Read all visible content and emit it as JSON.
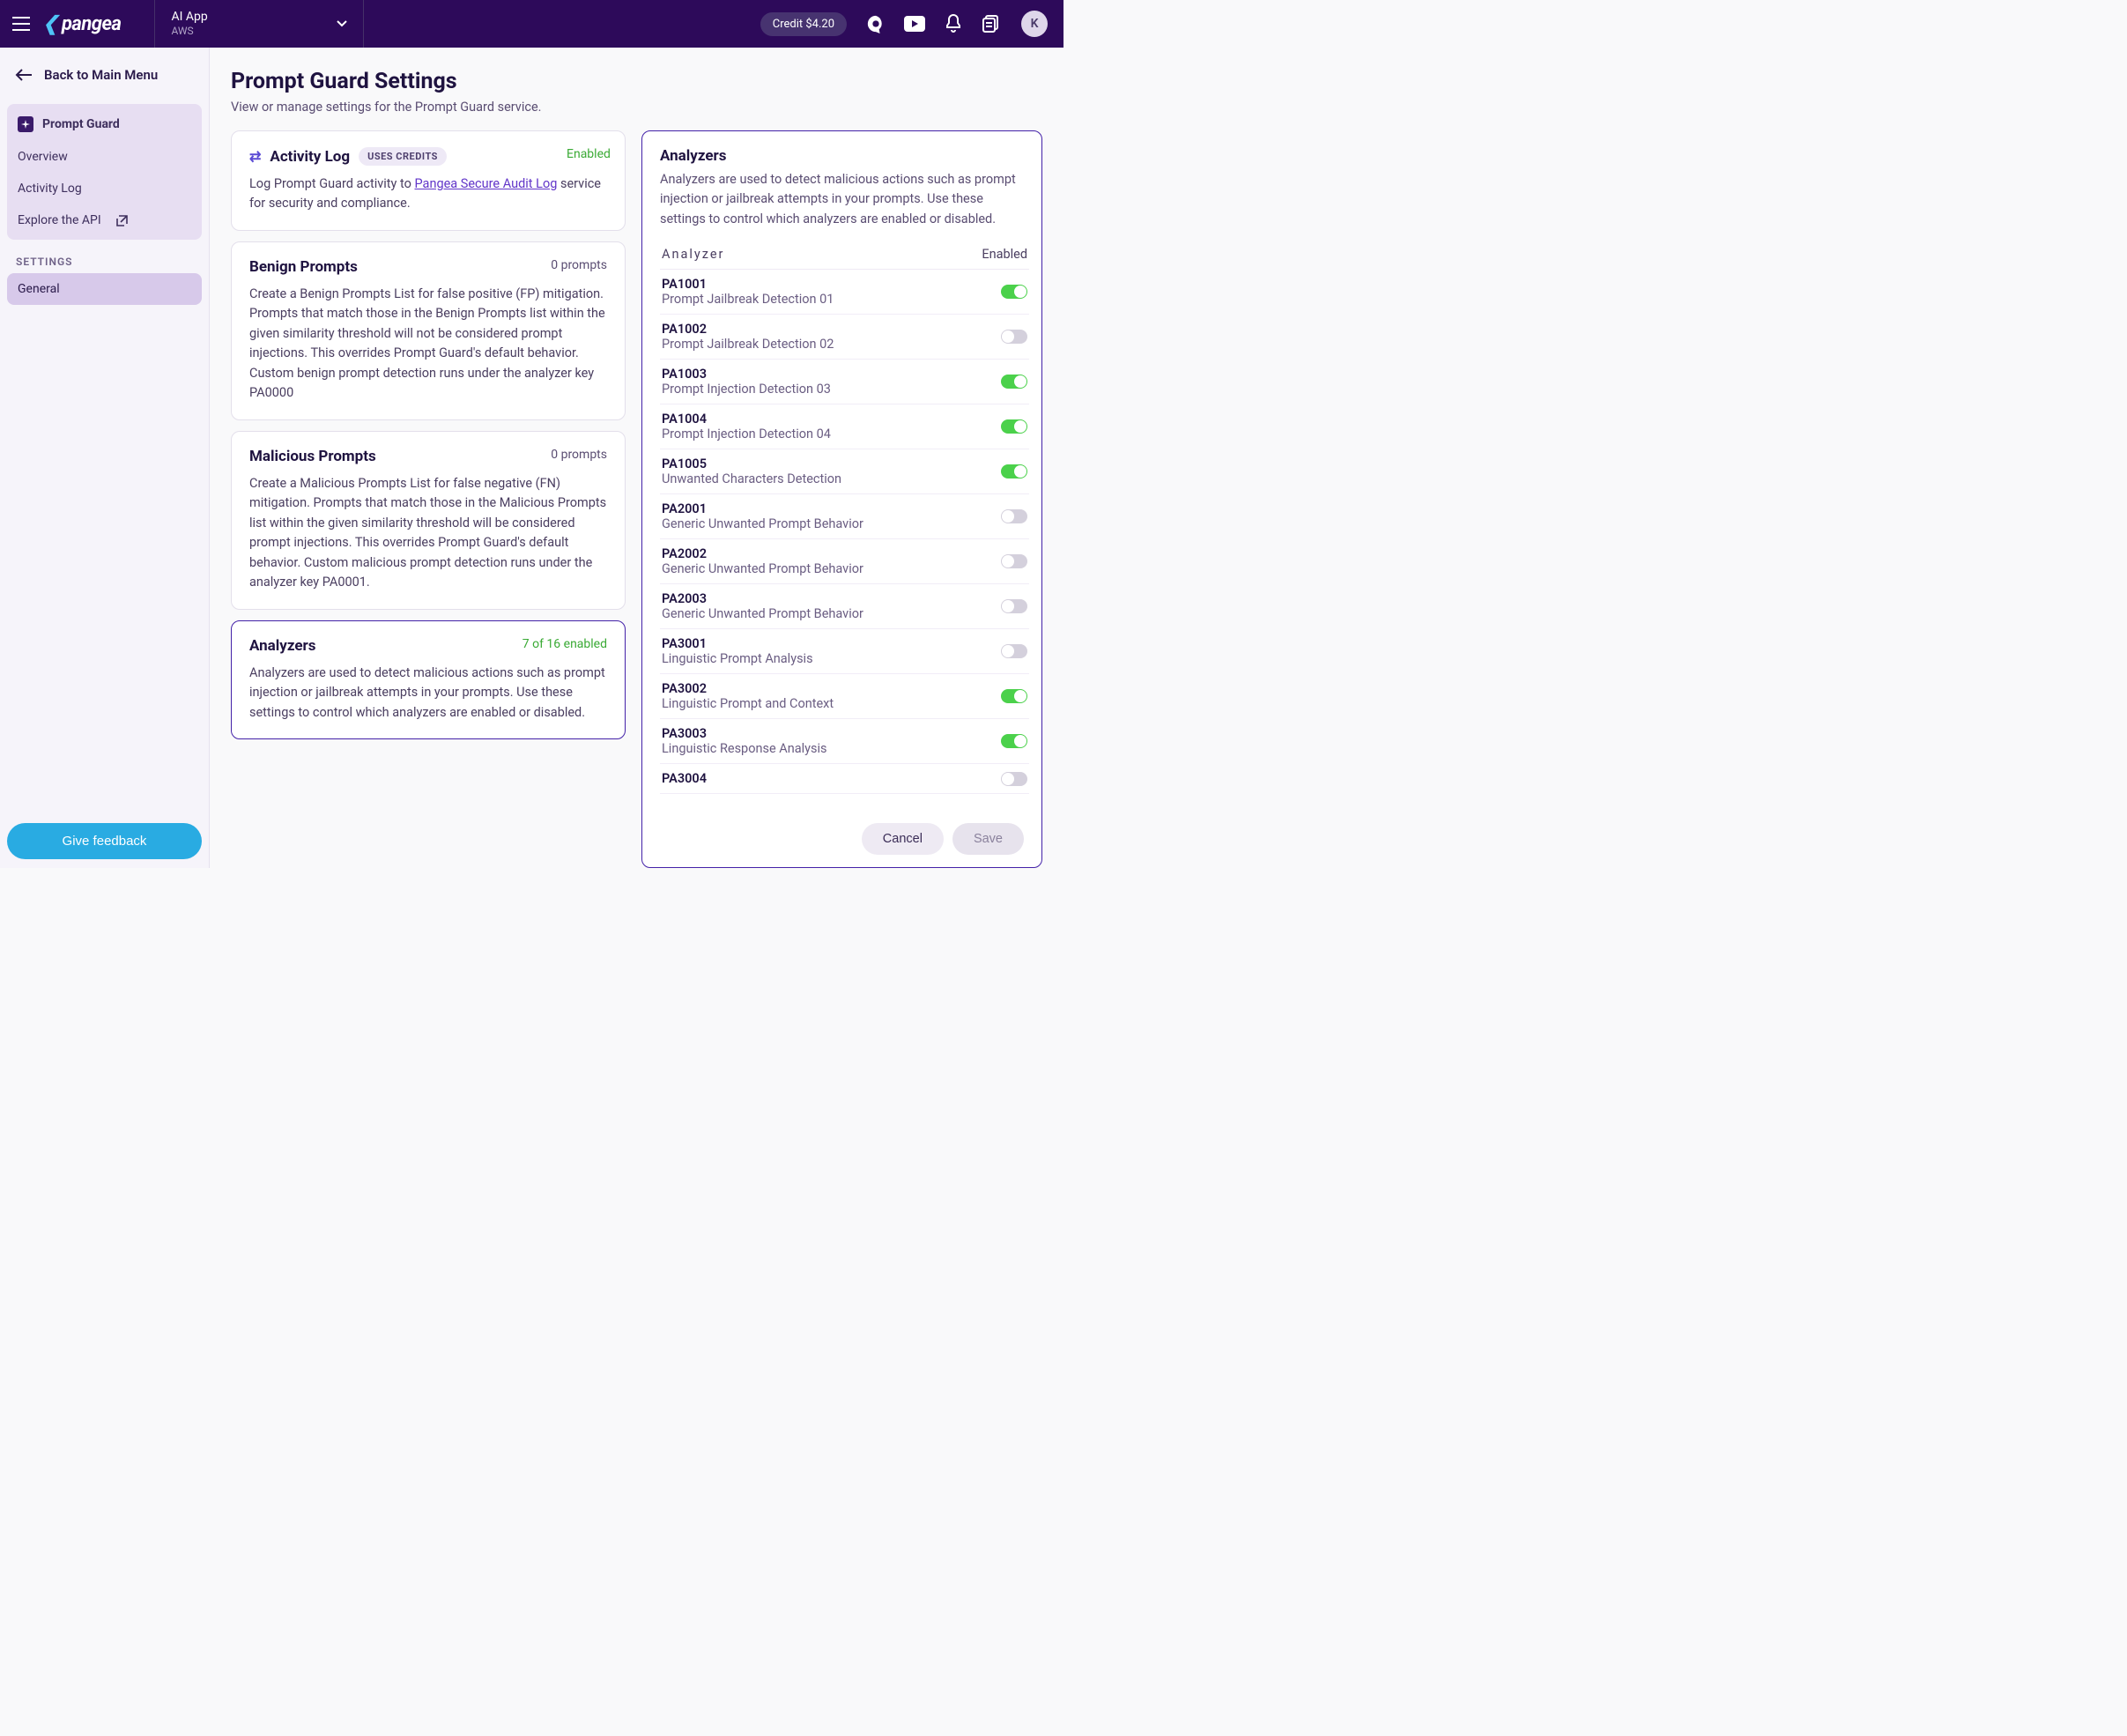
{
  "header": {
    "logo_text": "pangea",
    "app_name": "AI App",
    "app_region": "AWS",
    "credit_label": "Credit $4.20",
    "avatar_letter": "K"
  },
  "sidebar": {
    "back_label": "Back to Main Menu",
    "items": [
      {
        "label": "Prompt Guard",
        "bold": true,
        "icon": "sparkle"
      },
      {
        "label": "Overview"
      },
      {
        "label": "Activity Log"
      },
      {
        "label": "Explore the API",
        "ext": true
      }
    ],
    "settings_label": "SETTINGS",
    "settings_items": [
      {
        "label": "General",
        "active": true
      }
    ],
    "feedback_label": "Give feedback"
  },
  "page": {
    "title": "Prompt Guard Settings",
    "description": "View or manage settings for the Prompt Guard service."
  },
  "cards": {
    "activity": {
      "title": "Activity Log",
      "badge": "USES CREDITS",
      "status": "Enabled",
      "body_prefix": "Log Prompt Guard activity to ",
      "body_link": "Pangea Secure Audit Log",
      "body_suffix": " service for security and compliance."
    },
    "benign": {
      "title": "Benign Prompts",
      "count": "0 prompts",
      "body": "Create a Benign Prompts List for false positive (FP) mitigation. Prompts that match those in the Benign Prompts list within the given similarity threshold will not be considered prompt injections. This overrides Prompt Guard's default behavior. Custom benign prompt detection runs under the analyzer key PA0000"
    },
    "malicious": {
      "title": "Malicious Prompts",
      "count": "0 prompts",
      "body": "Create a Malicious Prompts List for false negative (FN) mitigation. Prompts that match those in the Malicious Prompts list within the given similarity threshold will be considered prompt injections. This overrides Prompt Guard's default behavior. Custom malicious prompt detection runs under the analyzer key PA0001."
    },
    "analyzers": {
      "title": "Analyzers",
      "count": "7 of 16 enabled",
      "body": "Analyzers are used to detect malicious actions such as prompt injection or jailbreak attempts in your prompts. Use these settings to control which analyzers are enabled or disabled."
    }
  },
  "panel": {
    "title": "Analyzers",
    "description": "Analyzers are used to detect malicious actions such as prompt injection or jailbreak attempts in your prompts. Use these settings to control which analyzers are enabled or disabled.",
    "col_analyzer": "Analyzer",
    "col_enabled": "Enabled",
    "rows": [
      {
        "id": "PA1001",
        "name": "Prompt Jailbreak Detection 01",
        "enabled": true
      },
      {
        "id": "PA1002",
        "name": "Prompt Jailbreak Detection 02",
        "enabled": false
      },
      {
        "id": "PA1003",
        "name": "Prompt Injection Detection 03",
        "enabled": true
      },
      {
        "id": "PA1004",
        "name": "Prompt Injection Detection 04",
        "enabled": true
      },
      {
        "id": "PA1005",
        "name": "Unwanted Characters Detection",
        "enabled": true
      },
      {
        "id": "PA2001",
        "name": "Generic Unwanted Prompt Behavior",
        "enabled": false
      },
      {
        "id": "PA2002",
        "name": "Generic Unwanted Prompt Behavior",
        "enabled": false
      },
      {
        "id": "PA2003",
        "name": "Generic Unwanted Prompt Behavior",
        "enabled": false
      },
      {
        "id": "PA3001",
        "name": "Linguistic Prompt Analysis",
        "enabled": false
      },
      {
        "id": "PA3002",
        "name": "Linguistic Prompt and Context",
        "enabled": true
      },
      {
        "id": "PA3003",
        "name": "Linguistic Response Analysis",
        "enabled": true
      },
      {
        "id": "PA3004",
        "name": "",
        "enabled": false
      }
    ],
    "cancel_label": "Cancel",
    "save_label": "Save"
  }
}
